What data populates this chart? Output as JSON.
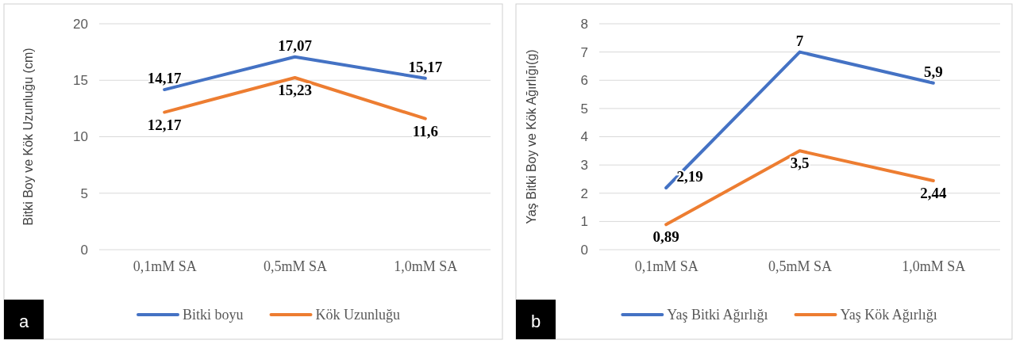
{
  "chart_data": [
    {
      "type": "line",
      "ylabel": "Bitki Boy ve Kök Uzunluğu (cm)",
      "categories": [
        "0,1mM SA",
        "0,5mM SA",
        "1,0mM SA"
      ],
      "ylim": [
        0,
        20
      ],
      "yticks": [
        0,
        5,
        10,
        15,
        20
      ],
      "grid": "y",
      "legend": "bottom",
      "annotations": [
        "a"
      ],
      "series": [
        {
          "name": "Bitki boyu",
          "color": "#4472c4",
          "values": [
            14.17,
            17.07,
            15.17
          ],
          "value_labels": [
            "14,17",
            "17,07",
            "15,17"
          ]
        },
        {
          "name": "Kök Uzunluğu",
          "color": "#ed7d31",
          "values": [
            12.17,
            15.23,
            11.6
          ],
          "value_labels": [
            "12,17",
            "15,23",
            "11,6"
          ]
        }
      ]
    },
    {
      "type": "line",
      "ylabel": "Yaş Bitki Boy ve Kök Ağırlığı(g)",
      "categories": [
        "0,1mM SA",
        "0,5mM SA",
        "1,0mM SA"
      ],
      "ylim": [
        0,
        8
      ],
      "yticks": [
        0,
        1,
        2,
        3,
        4,
        5,
        6,
        7,
        8
      ],
      "grid": "y",
      "legend": "bottom",
      "annotations": [
        "b"
      ],
      "series": [
        {
          "name": "Yaş Bitki Ağırlığı",
          "color": "#4472c4",
          "values": [
            2.19,
            7,
            5.9
          ],
          "value_labels": [
            "2,19",
            "7",
            "5,9"
          ]
        },
        {
          "name": "Yaş Kök Ağırlığı",
          "color": "#ed7d31",
          "values": [
            0.89,
            3.5,
            2.44
          ],
          "value_labels": [
            "0,89",
            "3,5",
            "2,44"
          ]
        }
      ]
    }
  ]
}
